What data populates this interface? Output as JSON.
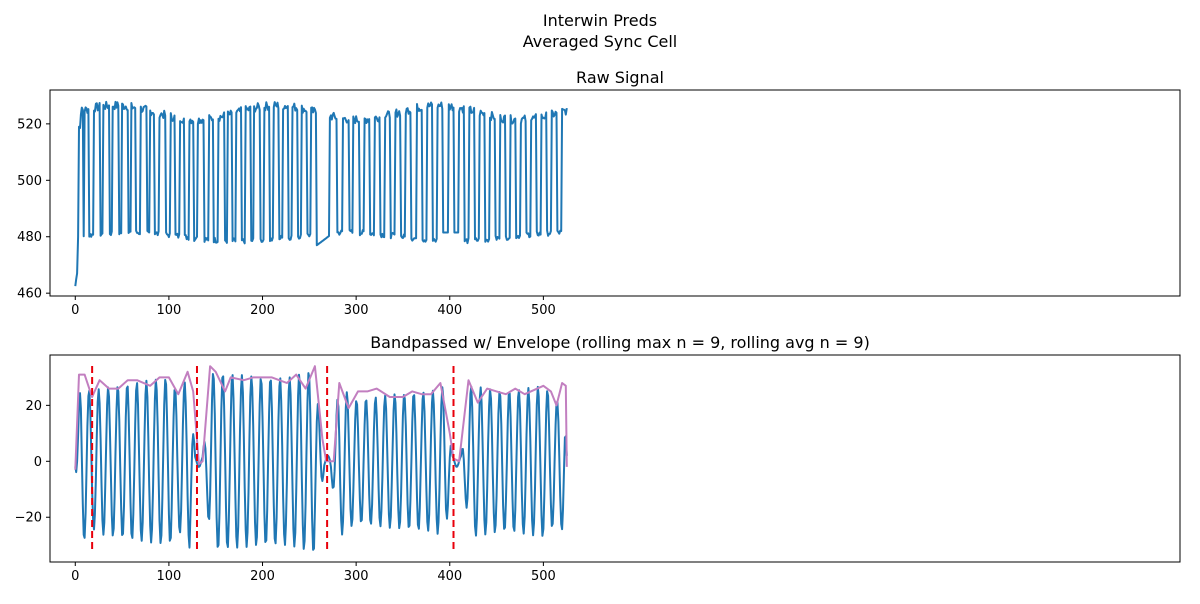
{
  "figure": {
    "suptitle_line1": "Interwin Preds",
    "suptitle_line2": "Averaged Sync Cell"
  },
  "chart_data": [
    {
      "type": "line",
      "title": "Raw Signal",
      "xlabel": "",
      "ylabel": "",
      "xlim": [
        -27,
        1180
      ],
      "ylim": [
        459,
        532
      ],
      "xticks": [
        0,
        100,
        200,
        300,
        400,
        500
      ],
      "yticks": [
        460,
        480,
        500,
        520
      ],
      "grid": false,
      "colors": {
        "signal": "#1f77b4"
      },
      "n_points": 526,
      "on_segments": [
        [
          0,
          4
        ],
        [
          5,
          9
        ],
        [
          10,
          15
        ],
        [
          20,
          27
        ],
        [
          30,
          37
        ],
        [
          40,
          47
        ],
        [
          50,
          57
        ],
        [
          60,
          65
        ],
        [
          70,
          77
        ],
        [
          80,
          85
        ],
        [
          90,
          97
        ],
        [
          102,
          107
        ],
        [
          112,
          117
        ],
        [
          122,
          127
        ],
        [
          131,
          138
        ],
        [
          143,
          148
        ],
        [
          153,
          160
        ],
        [
          163,
          168
        ],
        [
          172,
          178
        ],
        [
          182,
          188
        ],
        [
          191,
          198
        ],
        [
          202,
          208
        ],
        [
          212,
          218
        ],
        [
          222,
          228
        ],
        [
          232,
          238
        ],
        [
          242,
          248
        ],
        [
          252,
          258
        ],
        [
          262,
          268
        ],
        [
          272,
          280
        ],
        [
          286,
          293
        ],
        [
          297,
          304
        ],
        [
          309,
          315
        ],
        [
          320,
          326
        ],
        [
          331,
          337
        ],
        [
          342,
          348
        ],
        [
          353,
          359
        ],
        [
          365,
          371
        ],
        [
          376,
          382
        ],
        [
          387,
          393
        ],
        [
          399,
          405
        ],
        [
          410,
          416
        ],
        [
          421,
          427
        ],
        [
          432,
          438
        ],
        [
          443,
          449
        ],
        [
          454,
          460
        ],
        [
          465,
          471
        ],
        [
          476,
          482
        ],
        [
          487,
          493
        ],
        [
          498,
          504
        ],
        [
          509,
          515
        ],
        [
          520,
          526
        ]
      ],
      "low_level": 481,
      "high_level": 524
    },
    {
      "type": "line",
      "title": "Bandpassed w/ Envelope (rolling max n = 9, rolling avg n = 9)",
      "xlabel": "",
      "ylabel": "",
      "xlim": [
        -27,
        1180
      ],
      "ylim": [
        -36,
        38
      ],
      "xticks": [
        0,
        100,
        200,
        300,
        400,
        500
      ],
      "yticks": [
        -20,
        0,
        20
      ],
      "grid": false,
      "colors": {
        "signal": "#1f77b4",
        "envelope": "#c27fc0",
        "boundary": "#e8000b"
      },
      "n_points": 526,
      "cycle_period": 10.2,
      "amplitude_profile": [
        [
          0,
          2
        ],
        [
          6,
          30
        ],
        [
          18,
          24
        ],
        [
          26,
          26
        ],
        [
          60,
          28
        ],
        [
          100,
          30
        ],
        [
          110,
          25
        ],
        [
          122,
          31
        ],
        [
          128,
          2
        ],
        [
          136,
          2
        ],
        [
          146,
          32
        ],
        [
          200,
          30
        ],
        [
          230,
          30
        ],
        [
          255,
          33
        ],
        [
          266,
          2
        ],
        [
          272,
          2
        ],
        [
          282,
          27
        ],
        [
          300,
          22
        ],
        [
          340,
          24
        ],
        [
          380,
          25
        ],
        [
          395,
          27
        ],
        [
          403,
          2
        ],
        [
          412,
          2
        ],
        [
          422,
          27
        ],
        [
          460,
          25
        ],
        [
          500,
          27
        ],
        [
          515,
          22
        ],
        [
          522,
          26
        ],
        [
          525,
          2
        ]
      ],
      "envelope": [
        [
          0,
          -3
        ],
        [
          4,
          31
        ],
        [
          10,
          31
        ],
        [
          18,
          23
        ],
        [
          26,
          29
        ],
        [
          36,
          26
        ],
        [
          46,
          26
        ],
        [
          56,
          29
        ],
        [
          66,
          29
        ],
        [
          80,
          27
        ],
        [
          90,
          30
        ],
        [
          100,
          30
        ],
        [
          110,
          24
        ],
        [
          120,
          32
        ],
        [
          126,
          25
        ],
        [
          132,
          -1
        ],
        [
          136,
          0
        ],
        [
          144,
          34
        ],
        [
          150,
          32
        ],
        [
          160,
          25
        ],
        [
          166,
          30
        ],
        [
          180,
          29
        ],
        [
          190,
          30
        ],
        [
          200,
          30
        ],
        [
          210,
          30
        ],
        [
          226,
          28
        ],
        [
          236,
          31
        ],
        [
          246,
          26
        ],
        [
          256,
          34
        ],
        [
          264,
          8
        ],
        [
          268,
          0
        ],
        [
          276,
          0
        ],
        [
          282,
          28
        ],
        [
          292,
          19
        ],
        [
          302,
          25
        ],
        [
          312,
          25
        ],
        [
          322,
          26
        ],
        [
          336,
          23
        ],
        [
          350,
          23
        ],
        [
          360,
          25
        ],
        [
          370,
          24
        ],
        [
          380,
          24
        ],
        [
          390,
          28
        ],
        [
          400,
          10
        ],
        [
          404,
          1
        ],
        [
          410,
          0
        ],
        [
          420,
          29
        ],
        [
          430,
          21
        ],
        [
          440,
          26
        ],
        [
          450,
          25
        ],
        [
          460,
          24
        ],
        [
          470,
          26
        ],
        [
          480,
          24
        ],
        [
          500,
          27
        ],
        [
          508,
          25
        ],
        [
          514,
          20
        ],
        [
          520,
          28
        ],
        [
          524,
          27
        ],
        [
          525,
          -2
        ]
      ],
      "boundaries": [
        18,
        130,
        269,
        404
      ]
    }
  ]
}
